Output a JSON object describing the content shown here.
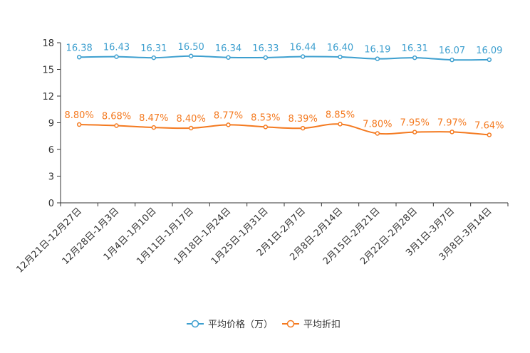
{
  "chart_data": {
    "type": "line",
    "title": "",
    "xlabel": "",
    "ylabel": "",
    "ylim": [
      0,
      18
    ],
    "yticks": [
      "0",
      "3",
      "6",
      "9",
      "12",
      "15",
      "18"
    ],
    "grid": false,
    "legend_position": "bottom-center",
    "categories": [
      "12月21日-12月27日",
      "12月28日-1月3日",
      "1月4日-1月10日",
      "1月11日-1月17日",
      "1月18日-1月24日",
      "1月25日-1月31日",
      "2月1日-2月7日",
      "2月8日-2月14日",
      "2月15日-2月21日",
      "2月22日-2月28日",
      "3月1日-3月7日",
      "3月8日-3月14日"
    ],
    "series": [
      {
        "name": "平均价格（万）",
        "color": "#3d9fcf",
        "values": [
          16.38,
          16.43,
          16.31,
          16.5,
          16.34,
          16.33,
          16.44,
          16.4,
          16.19,
          16.31,
          16.07,
          16.09
        ],
        "labels": [
          "16.38",
          "16.43",
          "16.31",
          "16.50",
          "16.34",
          "16.33",
          "16.44",
          "16.40",
          "16.19",
          "16.31",
          "16.07",
          "16.09"
        ]
      },
      {
        "name": "平均折扣",
        "color": "#f47a20",
        "values": [
          8.8,
          8.68,
          8.47,
          8.4,
          8.77,
          8.53,
          8.39,
          8.85,
          7.8,
          7.95,
          7.97,
          7.64
        ],
        "labels": [
          "8.80%",
          "8.68%",
          "8.47%",
          "8.40%",
          "8.77%",
          "8.53%",
          "8.39%",
          "8.85%",
          "7.80%",
          "7.95%",
          "7.97%",
          "7.64%"
        ]
      }
    ]
  }
}
